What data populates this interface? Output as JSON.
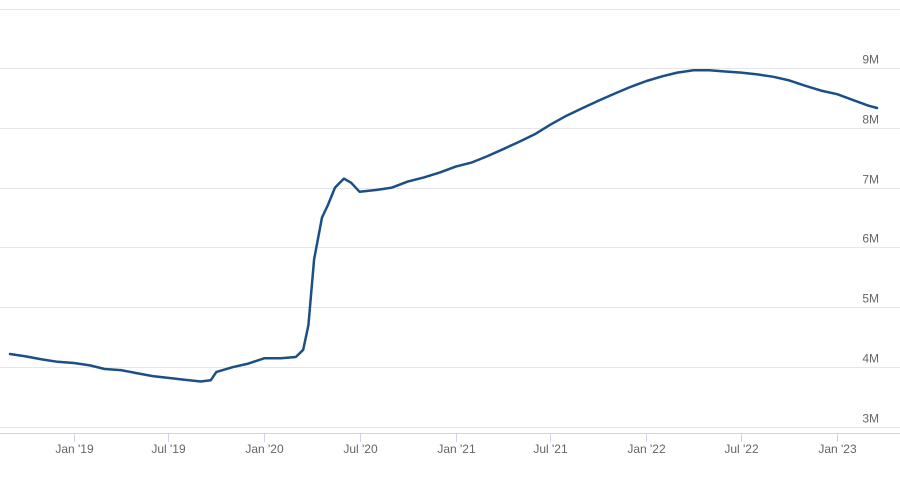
{
  "chart_data": {
    "type": "line",
    "title": "",
    "xlabel": "",
    "ylabel": "",
    "grid": true,
    "legend": "none",
    "x_range": [
      "2018-09-01",
      "2023-03-20"
    ],
    "ylim": [
      2900000,
      10000000
    ],
    "y_ticks": [
      3000000,
      4000000,
      5000000,
      6000000,
      7000000,
      8000000,
      9000000
    ],
    "y_tick_labels": [
      "3M",
      "4M",
      "5M",
      "6M",
      "7M",
      "8M",
      "9M"
    ],
    "x_ticks": [
      "2019-01-01",
      "2019-07-01",
      "2020-01-01",
      "2020-07-01",
      "2021-01-01",
      "2021-07-01",
      "2022-01-01",
      "2022-07-01",
      "2023-01-01"
    ],
    "x_tick_labels": [
      "Jan '19",
      "Jul '19",
      "Jan '20",
      "Jul '20",
      "Jan '21",
      "Jul '21",
      "Jan '22",
      "Jul '22",
      "Jan '23"
    ],
    "series": [
      {
        "color": "#1b4f86",
        "points": [
          [
            "2018-09-01",
            4220000
          ],
          [
            "2018-10-01",
            4180000
          ],
          [
            "2018-11-01",
            4130000
          ],
          [
            "2018-12-01",
            4090000
          ],
          [
            "2019-01-01",
            4070000
          ],
          [
            "2019-02-01",
            4030000
          ],
          [
            "2019-03-01",
            3970000
          ],
          [
            "2019-04-01",
            3950000
          ],
          [
            "2019-05-01",
            3900000
          ],
          [
            "2019-06-01",
            3850000
          ],
          [
            "2019-07-01",
            3820000
          ],
          [
            "2019-08-01",
            3790000
          ],
          [
            "2019-09-01",
            3760000
          ],
          [
            "2019-09-20",
            3780000
          ],
          [
            "2019-10-01",
            3920000
          ],
          [
            "2019-11-01",
            4000000
          ],
          [
            "2019-12-01",
            4060000
          ],
          [
            "2020-01-01",
            4150000
          ],
          [
            "2020-02-01",
            4150000
          ],
          [
            "2020-03-01",
            4170000
          ],
          [
            "2020-03-15",
            4290000
          ],
          [
            "2020-03-25",
            4700000
          ],
          [
            "2020-04-05",
            5800000
          ],
          [
            "2020-04-20",
            6500000
          ],
          [
            "2020-05-01",
            6700000
          ],
          [
            "2020-05-15",
            7000000
          ],
          [
            "2020-06-01",
            7150000
          ],
          [
            "2020-06-15",
            7080000
          ],
          [
            "2020-07-01",
            6930000
          ],
          [
            "2020-08-01",
            6960000
          ],
          [
            "2020-09-01",
            7000000
          ],
          [
            "2020-10-01",
            7100000
          ],
          [
            "2020-11-01",
            7170000
          ],
          [
            "2020-12-01",
            7250000
          ],
          [
            "2021-01-01",
            7350000
          ],
          [
            "2021-02-01",
            7420000
          ],
          [
            "2021-03-01",
            7520000
          ],
          [
            "2021-04-01",
            7640000
          ],
          [
            "2021-05-01",
            7760000
          ],
          [
            "2021-06-01",
            7890000
          ],
          [
            "2021-07-01",
            8050000
          ],
          [
            "2021-08-01",
            8200000
          ],
          [
            "2021-09-01",
            8330000
          ],
          [
            "2021-10-01",
            8450000
          ],
          [
            "2021-11-01",
            8570000
          ],
          [
            "2021-12-01",
            8680000
          ],
          [
            "2022-01-01",
            8780000
          ],
          [
            "2022-02-01",
            8860000
          ],
          [
            "2022-03-01",
            8920000
          ],
          [
            "2022-04-01",
            8960000
          ],
          [
            "2022-05-01",
            8960000
          ],
          [
            "2022-06-01",
            8940000
          ],
          [
            "2022-07-01",
            8920000
          ],
          [
            "2022-08-01",
            8890000
          ],
          [
            "2022-09-01",
            8850000
          ],
          [
            "2022-10-01",
            8790000
          ],
          [
            "2022-11-01",
            8700000
          ],
          [
            "2022-12-01",
            8620000
          ],
          [
            "2023-01-01",
            8560000
          ],
          [
            "2023-02-01",
            8460000
          ],
          [
            "2023-03-01",
            8370000
          ],
          [
            "2023-03-18",
            8330000
          ]
        ]
      }
    ]
  }
}
